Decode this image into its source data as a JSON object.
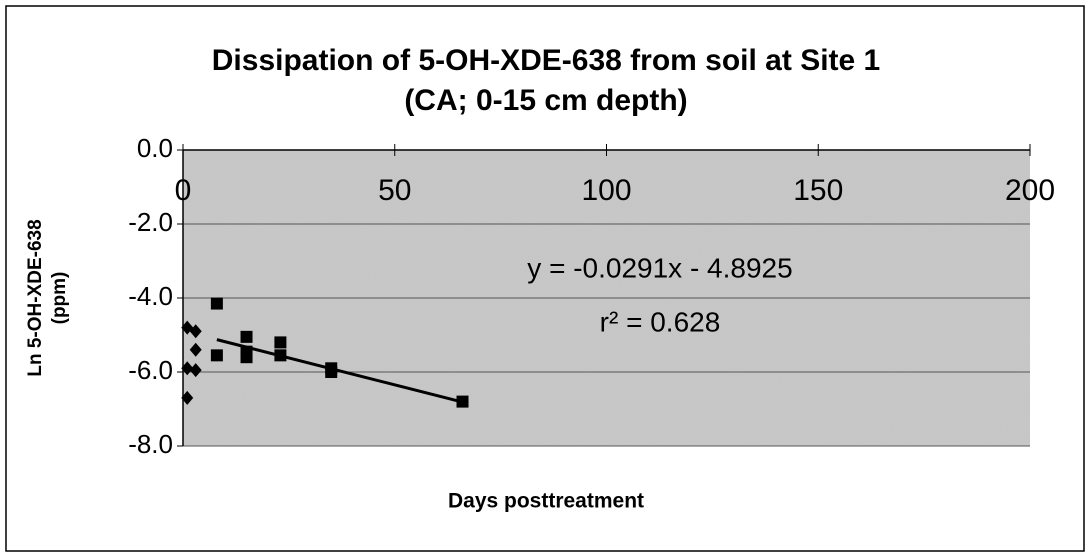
{
  "chart_data": {
    "type": "scatter",
    "title": [
      "Dissipation of 5-OH-XDE-638 from soil at Site 1",
      "(CA; 0-15 cm depth)"
    ],
    "xlabel": "Days posttreatment",
    "ylabel": [
      "Ln 5-OH-XDE-638",
      "(ppm)"
    ],
    "xlim": [
      0,
      200
    ],
    "xticks": [
      0,
      50,
      100,
      150,
      200
    ],
    "ylim": [
      -8,
      0
    ],
    "yticks": [
      {
        "value": 0,
        "label": "0.0"
      },
      {
        "value": -2,
        "label": "-2.0"
      },
      {
        "value": -4,
        "label": "-4.0"
      },
      {
        "value": -6,
        "label": "-6.0"
      },
      {
        "value": -8,
        "label": "-8.0"
      }
    ],
    "grid": true,
    "series": [
      {
        "marker": "diamond",
        "color": "#000000",
        "x": [
          1,
          3,
          3,
          1,
          3,
          1
        ],
        "values": [
          -4.8,
          -4.9,
          -5.4,
          -5.9,
          -5.95,
          -6.7
        ]
      },
      {
        "marker": "square",
        "color": "#000000",
        "x": [
          8,
          8,
          15,
          15,
          15,
          23,
          23,
          35,
          35,
          66
        ],
        "values": [
          -4.15,
          -5.55,
          -5.05,
          -5.45,
          -5.6,
          -5.2,
          -5.55,
          -5.9,
          -6.0,
          -6.8
        ]
      }
    ],
    "trendline": {
      "slope": -0.0291,
      "intercept": -4.8925,
      "x_range": [
        8,
        66
      ],
      "color": "#000000"
    },
    "annotations": [
      "y = -0.0291x - 4.8925",
      "r² = 0.628"
    ]
  }
}
